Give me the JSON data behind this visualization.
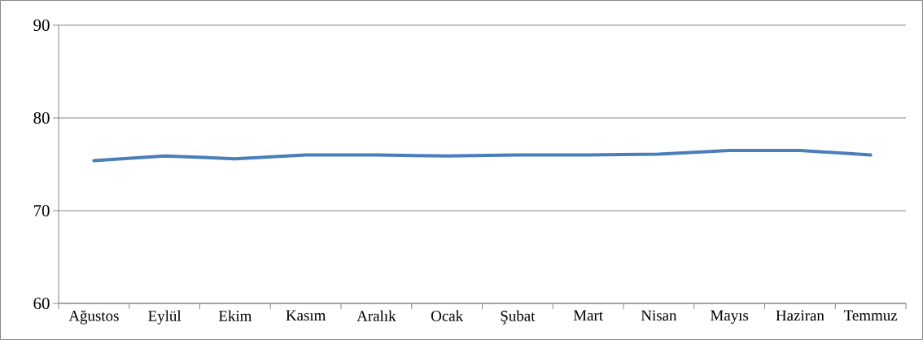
{
  "chart_data": {
    "type": "line",
    "categories": [
      "Ağustos",
      "Eylül",
      "Ekim",
      "Kasım",
      "Aralık",
      "Ocak",
      "Şubat",
      "Mart",
      "Nisan",
      "Mayıs",
      "Haziran",
      "Temmuz"
    ],
    "series": [
      {
        "color": "#4a7ebb",
        "values": [
          75.4,
          75.9,
          75.6,
          76.0,
          76.0,
          75.9,
          76.0,
          76.0,
          76.1,
          76.5,
          76.5,
          76.0
        ]
      }
    ],
    "ylim": [
      60,
      90
    ],
    "yticks": [
      60,
      70,
      80,
      90
    ],
    "grid": "y",
    "marker": "none",
    "line_style": "solid"
  }
}
